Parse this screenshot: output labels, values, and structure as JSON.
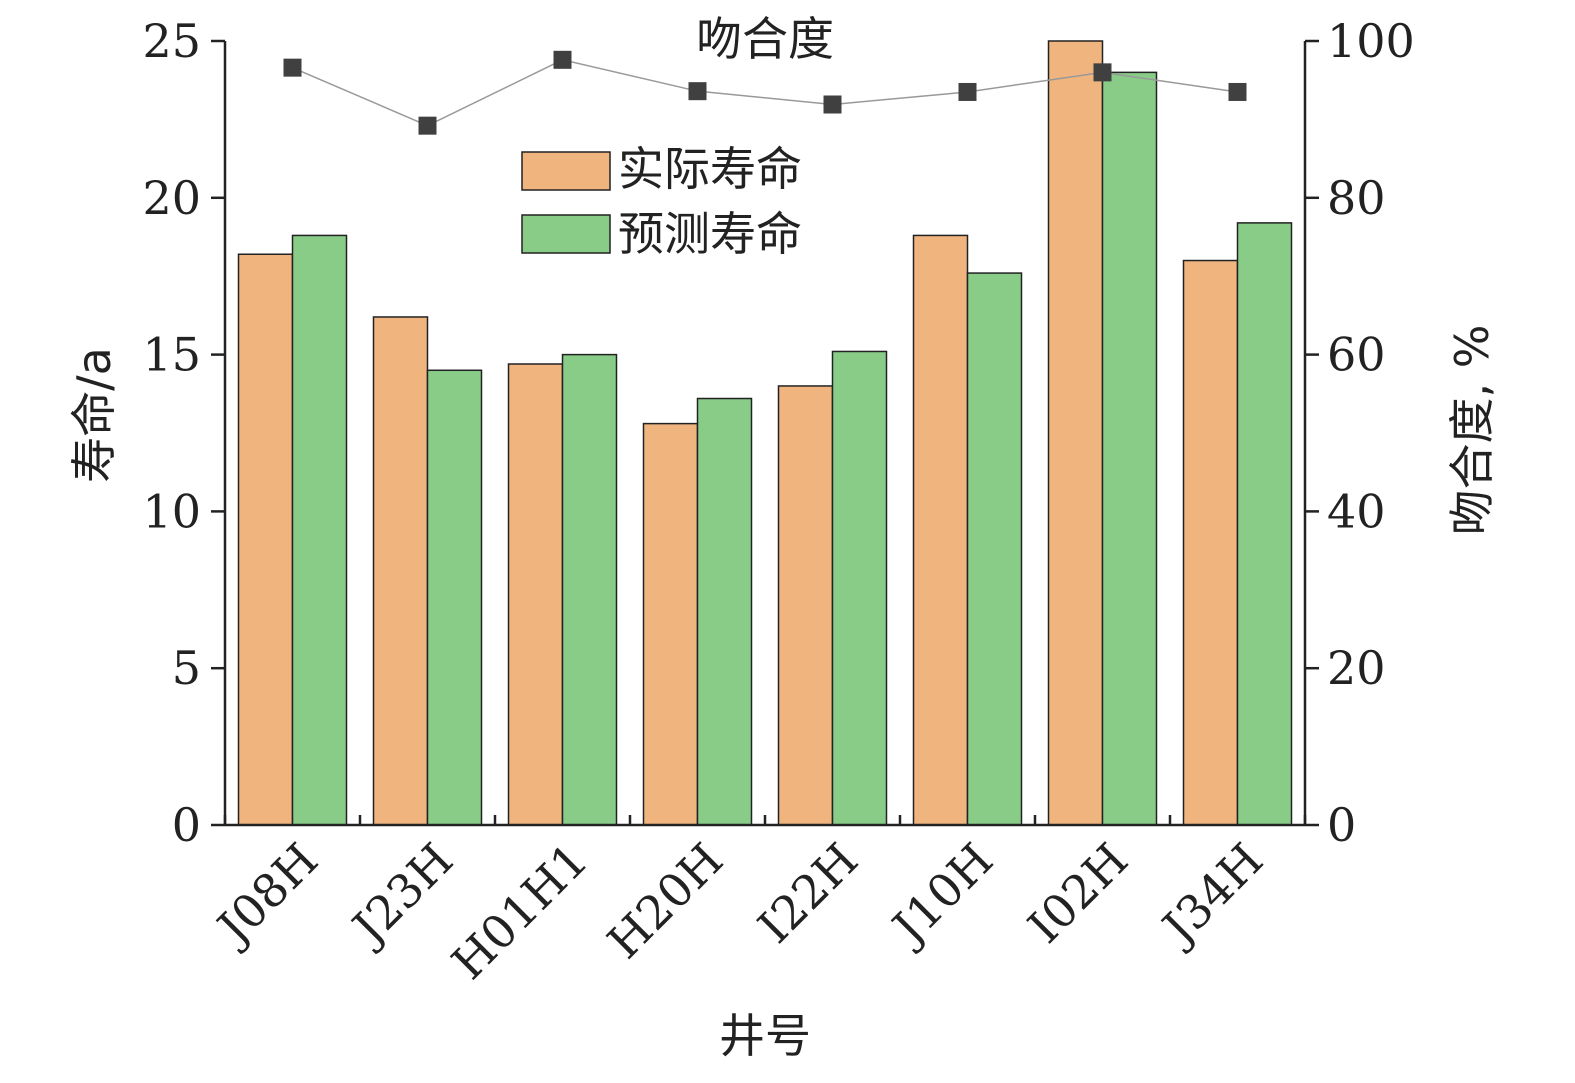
{
  "chart_data": {
    "type": "bar",
    "categories": [
      "J08H",
      "J23H",
      "H01H1",
      "H20H",
      "I22H",
      "J10H",
      "I02H",
      "J34H"
    ],
    "series": [
      {
        "name": "实际寿命",
        "axis": "left",
        "color": "#F0B47F",
        "values": [
          18.2,
          16.2,
          14.7,
          12.8,
          14.0,
          18.8,
          25.0,
          18.0
        ]
      },
      {
        "name": "预测寿命",
        "axis": "left",
        "color": "#88CC88",
        "values": [
          18.8,
          14.5,
          15.0,
          13.6,
          15.1,
          17.6,
          24.0,
          19.2
        ]
      }
    ],
    "line_series": {
      "name": "吻合度",
      "axis": "right",
      "color": "#404040",
      "values": [
        96.6,
        89.2,
        97.6,
        93.6,
        91.9,
        93.5,
        96.0,
        93.5
      ]
    },
    "xlabel": "井号",
    "ylabel": "寿命/a",
    "y2label": "吻合度, %",
    "ylim": [
      0,
      25
    ],
    "y2lim": [
      0,
      100
    ],
    "yticks": [
      "0",
      "5",
      "10",
      "15",
      "20",
      "25"
    ],
    "y2ticks": [
      "0",
      "20",
      "40",
      "60",
      "80",
      "100"
    ],
    "legend_placement": "top-center",
    "grid": false
  }
}
